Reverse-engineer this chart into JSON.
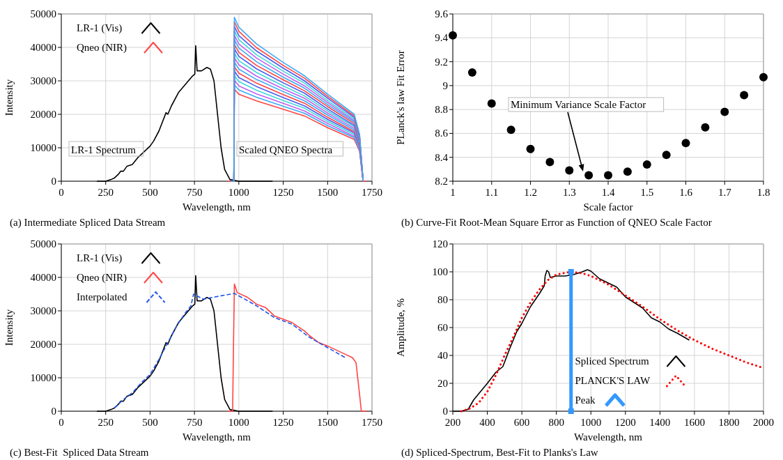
{
  "chart_data": [
    {
      "type": "line",
      "xlabel": "Wavelength, nm",
      "ylabel": "Intensity",
      "xlim": [
        0,
        1750
      ],
      "xticks": [
        0,
        250,
        500,
        750,
        1000,
        1250,
        1500,
        1750
      ],
      "ylim": [
        0,
        50000
      ],
      "yticks": [
        0,
        10000,
        20000,
        30000,
        40000,
        50000
      ],
      "grid": true,
      "legend": "top left",
      "annotations": [
        "(a) Intermediate Spliced Data Stream",
        "LR-1 Spectrum",
        "Scaled QNEO Spectra"
      ],
      "series": [
        {
          "name": "LR-1 (Vis)",
          "color": "#000000",
          "x": [
            200,
            250,
            280,
            300,
            320,
            335,
            350,
            370,
            400,
            430,
            470,
            500,
            520,
            550,
            590,
            600,
            620,
            660,
            700,
            740,
            752,
            757,
            765,
            790,
            820,
            840,
            860,
            880,
            900,
            920,
            950,
            1000,
            1190
          ],
          "values": [
            0,
            0,
            500,
            1000,
            2000,
            3000,
            3000,
            4500,
            5000,
            7000,
            9000,
            10500,
            12000,
            15000,
            20500,
            20000,
            22500,
            26500,
            29000,
            31500,
            32000,
            40500,
            33000,
            33000,
            34000,
            33500,
            30000,
            20000,
            10000,
            3500,
            500,
            0,
            0
          ]
        },
        {
          "name": "Qneo (NIR)",
          "color": "#ff4444",
          "x": [
            935,
            972,
            975,
            1000,
            1100,
            1250,
            1370,
            1500,
            1650,
            1680,
            1700,
            1720
          ],
          "values": [
            0,
            0,
            27500,
            26000,
            24000,
            21500,
            19500,
            16000,
            12500,
            9000,
            0,
            0
          ]
        },
        {
          "color": "#3fa9f5",
          "x": [
            955,
            972,
            975,
            1000,
            1100,
            1250,
            1370,
            1500,
            1650,
            1680,
            1700
          ],
          "values": [
            0,
            0,
            28800,
            27300,
            25100,
            22400,
            20300,
            16600,
            13000,
            9300,
            0
          ]
        },
        {
          "color": "#c060f0",
          "x": [
            955,
            972,
            975,
            1000,
            1100,
            1250,
            1370,
            1500,
            1650,
            1680,
            1700
          ],
          "values": [
            0,
            0,
            30200,
            28500,
            26100,
            23300,
            21000,
            17300,
            13400,
            9600,
            0
          ]
        },
        {
          "color": "#40d8d8",
          "x": [
            955,
            972,
            975,
            1000,
            1100,
            1250,
            1370,
            1500,
            1650,
            1680,
            1700
          ],
          "values": [
            0,
            0,
            31500,
            29800,
            27200,
            24100,
            21800,
            17900,
            13900,
            9900,
            0
          ]
        },
        {
          "color": "#4b5cf0",
          "x": [
            955,
            972,
            975,
            1000,
            1100,
            1250,
            1370,
            1500,
            1650,
            1680,
            1700
          ],
          "values": [
            0,
            0,
            32900,
            31000,
            28300,
            25000,
            22500,
            18500,
            14400,
            10300,
            0
          ]
        },
        {
          "color": "#ff4444",
          "x": [
            955,
            972,
            975,
            1000,
            1100,
            1250,
            1370,
            1500,
            1650,
            1680,
            1700
          ],
          "values": [
            0,
            0,
            34200,
            32300,
            29300,
            25900,
            23300,
            19100,
            14800,
            10600,
            0
          ]
        },
        {
          "color": "#3fa9f5",
          "x": [
            955,
            972,
            975,
            1000,
            1100,
            1250,
            1370,
            1500,
            1650,
            1680,
            1700
          ],
          "values": [
            0,
            0,
            35600,
            33500,
            30400,
            26800,
            24000,
            19800,
            15300,
            10900,
            0
          ]
        },
        {
          "color": "#c060f0",
          "x": [
            955,
            972,
            975,
            1000,
            1100,
            1250,
            1370,
            1500,
            1650,
            1680,
            1700
          ],
          "values": [
            0,
            0,
            36900,
            34800,
            31400,
            27600,
            24800,
            20400,
            15800,
            11200,
            0
          ]
        },
        {
          "color": "#40d8d8",
          "x": [
            955,
            972,
            975,
            1000,
            1100,
            1250,
            1370,
            1500,
            1650,
            1680,
            1700
          ],
          "values": [
            0,
            0,
            38300,
            36000,
            32500,
            28500,
            25500,
            21000,
            16300,
            11500,
            0
          ]
        },
        {
          "color": "#4b5cf0",
          "x": [
            955,
            972,
            975,
            1000,
            1100,
            1250,
            1370,
            1500,
            1650,
            1680,
            1700
          ],
          "values": [
            0,
            0,
            39600,
            37300,
            33600,
            29400,
            26300,
            21600,
            16700,
            11800,
            0
          ]
        },
        {
          "color": "#ff4444",
          "x": [
            955,
            972,
            975,
            1000,
            1100,
            1250,
            1370,
            1500,
            1650,
            1680,
            1700
          ],
          "values": [
            0,
            0,
            40900,
            38500,
            34600,
            30300,
            27000,
            22300,
            17200,
            12100,
            0
          ]
        },
        {
          "color": "#3fa9f5",
          "x": [
            955,
            972,
            975,
            1000,
            1100,
            1250,
            1370,
            1500,
            1650,
            1680,
            1700
          ],
          "values": [
            0,
            0,
            42300,
            39800,
            35700,
            31100,
            27800,
            22900,
            17700,
            12400,
            0
          ]
        },
        {
          "color": "#c060f0",
          "x": [
            955,
            972,
            975,
            1000,
            1100,
            1250,
            1370,
            1500,
            1650,
            1680,
            1700
          ],
          "values": [
            0,
            0,
            43600,
            41000,
            36800,
            32000,
            28500,
            23500,
            18100,
            12800,
            0
          ]
        },
        {
          "color": "#40d8d8",
          "x": [
            955,
            972,
            975,
            1000,
            1100,
            1250,
            1370,
            1500,
            1650,
            1680,
            1700
          ],
          "values": [
            0,
            0,
            45000,
            42300,
            37800,
            32900,
            29300,
            24100,
            18600,
            13100,
            0
          ]
        },
        {
          "color": "#4b5cf0",
          "x": [
            955,
            972,
            975,
            1000,
            1100,
            1250,
            1370,
            1500,
            1650,
            1680,
            1700
          ],
          "values": [
            0,
            0,
            46300,
            43500,
            38900,
            33800,
            30000,
            24800,
            19100,
            13400,
            0
          ]
        },
        {
          "color": "#ff4444",
          "x": [
            955,
            972,
            975,
            1000,
            1100,
            1250,
            1370,
            1500,
            1650,
            1680,
            1700
          ],
          "values": [
            0,
            0,
            47700,
            44800,
            39900,
            34600,
            30800,
            25400,
            19500,
            13700,
            0
          ]
        },
        {
          "color": "#3fa9f5",
          "x": [
            955,
            972,
            975,
            1000,
            1100,
            1250,
            1370,
            1500,
            1650,
            1680,
            1700
          ],
          "values": [
            0,
            0,
            49000,
            46000,
            41000,
            35500,
            31500,
            26000,
            20000,
            14000,
            0
          ]
        }
      ]
    },
    {
      "type": "scatter",
      "xlabel": "Scale factor",
      "ylabel": "PLanck's law Fit Error",
      "xlim": [
        1,
        1.8
      ],
      "xticks": [
        1,
        1.1,
        1.2,
        1.3,
        1.4,
        1.5,
        1.6,
        1.7,
        1.8
      ],
      "ylim": [
        8.2,
        9.6
      ],
      "yticks": [
        8.2,
        8.4,
        8.6,
        8.8,
        9,
        9.2,
        9.4,
        9.6
      ],
      "grid": true,
      "marker": "circle",
      "color": "#000000",
      "annotations": [
        "(b) Curve-Fit Root-Mean Square Error as Function of QNEO Scale Factor",
        "Minimum Variance Scale Factor"
      ],
      "x": [
        1,
        1.05,
        1.1,
        1.15,
        1.2,
        1.25,
        1.3,
        1.35,
        1.4,
        1.45,
        1.5,
        1.55,
        1.6,
        1.65,
        1.7,
        1.75,
        1.8
      ],
      "values": [
        9.42,
        9.11,
        8.85,
        8.63,
        8.47,
        8.36,
        8.29,
        8.25,
        8.25,
        8.28,
        8.34,
        8.42,
        8.52,
        8.65,
        8.78,
        8.92,
        9.07
      ]
    },
    {
      "type": "line",
      "xlabel": "Wavelength, nm",
      "ylabel": "Intensity",
      "xlim": [
        0,
        1750
      ],
      "xticks": [
        0,
        250,
        500,
        750,
        1000,
        1250,
        1500,
        1750
      ],
      "ylim": [
        0,
        50000
      ],
      "yticks": [
        0,
        10000,
        20000,
        30000,
        40000,
        50000
      ],
      "grid": true,
      "legend": "top left",
      "annotations": [
        "(c) Best-Fit  Spliced Data Stream"
      ],
      "series": [
        {
          "name": "LR-1 (Vis)",
          "color": "#000000",
          "x": [
            200,
            250,
            280,
            300,
            320,
            335,
            350,
            370,
            400,
            430,
            470,
            500,
            520,
            550,
            590,
            600,
            620,
            660,
            700,
            740,
            752,
            757,
            765,
            790,
            820,
            840,
            860,
            880,
            900,
            920,
            950,
            1000,
            1190
          ],
          "values": [
            0,
            0,
            500,
            1000,
            2000,
            3000,
            3000,
            4500,
            5000,
            7000,
            9000,
            10500,
            12000,
            15000,
            20500,
            20000,
            22500,
            26500,
            29000,
            31500,
            32000,
            40500,
            33000,
            33000,
            34000,
            33500,
            30000,
            20000,
            10000,
            3500,
            500,
            0,
            0
          ]
        },
        {
          "name": "Qneo (NIR)",
          "color": "#ff4444",
          "x": [
            935,
            965,
            970,
            975,
            990,
            1050,
            1100,
            1150,
            1200,
            1300,
            1370,
            1400,
            1450,
            1500,
            1600,
            1640,
            1660,
            1680,
            1690,
            1720
          ],
          "values": [
            0,
            0,
            20000,
            38000,
            35500,
            34000,
            32000,
            31000,
            28500,
            26500,
            24000,
            22500,
            20500,
            19500,
            17000,
            16000,
            14500,
            5000,
            0,
            0
          ]
        },
        {
          "name": "Interpolated",
          "color": "#2255ee",
          "line_style": "dashed",
          "x": [
            300,
            350,
            400,
            450,
            500,
            550,
            600,
            650,
            700,
            730,
            745,
            800,
            900,
            975,
            1050,
            1100,
            1200,
            1300,
            1400,
            1500,
            1600
          ],
          "values": [
            1000,
            3500,
            5500,
            8500,
            11000,
            15500,
            20500,
            25500,
            29500,
            31500,
            35000,
            33500,
            34500,
            35200,
            33000,
            31500,
            28000,
            26000,
            22000,
            19000,
            16000
          ]
        }
      ]
    },
    {
      "type": "line",
      "xlabel": "Wavelength, nm",
      "ylabel": "Amplitude, %",
      "xlim": [
        200,
        2000
      ],
      "xticks": [
        200,
        400,
        600,
        800,
        1000,
        1200,
        1400,
        1600,
        1800,
        2000
      ],
      "ylim": [
        0,
        120
      ],
      "yticks": [
        0,
        20,
        40,
        60,
        80,
        100,
        120
      ],
      "grid": true,
      "legend": "bottom right",
      "annotations": [
        "(d) Spliced-Spectrum, Best-Fit to Planks's Law"
      ],
      "series": [
        {
          "name": "Spliced Spectrum",
          "color": "#000000",
          "x": [
            200,
            250,
            290,
            320,
            360,
            400,
            450,
            490,
            530,
            570,
            600,
            650,
            700,
            730,
            735,
            745,
            755,
            765,
            800,
            850,
            900,
            950,
            980,
            1000,
            1050,
            1100,
            1150,
            1200,
            1300,
            1350,
            1400,
            1450,
            1500,
            1570
          ],
          "values": [
            0,
            0,
            1.5,
            8,
            14,
            20,
            28,
            32,
            45,
            57,
            63,
            75,
            84,
            90,
            97,
            101,
            100,
            96,
            97,
            97,
            98,
            100,
            101.5,
            100.5,
            95,
            92,
            89,
            82,
            74,
            67,
            64,
            59,
            56,
            51
          ]
        },
        {
          "name": "PLANCK'S LAW",
          "color": "#ff0000",
          "line_style": "dotted",
          "x": [
            250,
            300,
            350,
            400,
            450,
            500,
            550,
            600,
            650,
            700,
            750,
            800,
            880,
            950,
            1000,
            1100,
            1200,
            1300,
            1400,
            1500,
            1600,
            1700,
            1800,
            1900,
            2000
          ],
          "values": [
            0,
            2,
            6,
            14,
            26,
            40,
            53,
            67,
            78,
            87,
            94,
            98,
            100,
            99,
            97,
            91,
            83,
            75,
            66,
            58,
            51,
            45,
            40,
            35,
            31
          ]
        },
        {
          "name": "Peak",
          "color": "#3399ff",
          "marker": "square",
          "x": [
            885,
            885
          ],
          "values": [
            0,
            100
          ]
        }
      ]
    }
  ]
}
